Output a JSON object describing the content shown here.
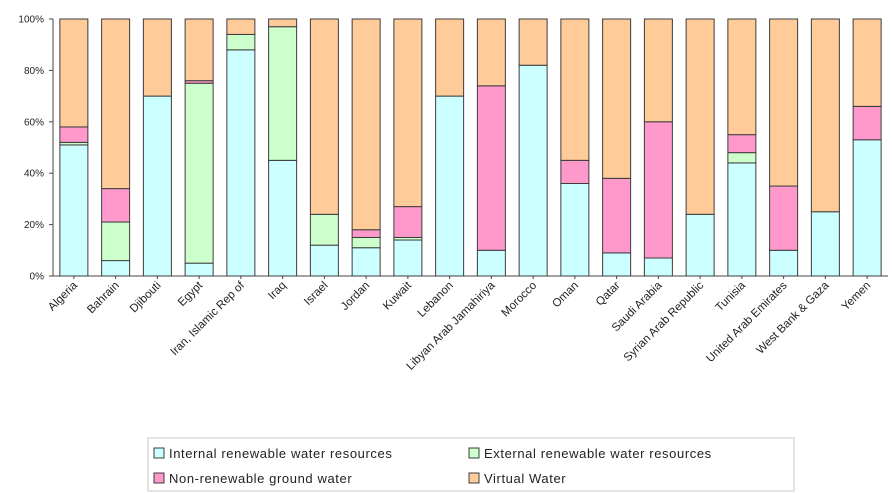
{
  "chart_data": {
    "type": "bar",
    "stacked": true,
    "percent": true,
    "ylim": [
      0,
      100
    ],
    "yticks": [
      "0%",
      "20%",
      "40%",
      "60%",
      "80%",
      "100%"
    ],
    "grid": false,
    "legend_position": "bottom",
    "categories": [
      "Algeria",
      "Bahrain",
      "Djibouti",
      "Egypt",
      "Iran, Islamic Rep of",
      "Iraq",
      "Israel",
      "Jordan",
      "Kuwait",
      "Lebanon",
      "Libyan Arab Jamahiriya",
      "Morocco",
      "Oman",
      "Qatar",
      "Saudi Arabia",
      "Syrian Arab Republic",
      "Tunisia",
      "United Arab Emirates",
      "West Bank & Gaza",
      "Yemen"
    ],
    "series": [
      {
        "name": "Internal renewable water resources",
        "color": "#ccffff",
        "values": [
          51,
          6,
          70,
          5,
          88,
          45,
          12,
          11,
          14,
          70,
          10,
          82,
          36,
          9,
          7,
          24,
          44,
          10,
          25,
          53
        ]
      },
      {
        "name": "External renewable water resources",
        "color": "#ccffcc",
        "values": [
          1,
          15,
          0,
          70,
          6,
          52,
          12,
          4,
          1,
          0,
          0,
          0,
          0,
          0,
          0,
          0,
          4,
          0,
          0,
          0
        ]
      },
      {
        "name": "Non-renewable ground water",
        "color": "#ff99cc",
        "values": [
          6,
          13,
          0,
          1,
          0,
          0,
          0,
          3,
          12,
          0,
          64,
          0,
          9,
          29,
          53,
          0,
          7,
          25,
          0,
          13
        ]
      },
      {
        "name": "Virtual Water",
        "color": "#ffcc99",
        "values": [
          42,
          66,
          30,
          24,
          6,
          3,
          76,
          82,
          73,
          30,
          26,
          18,
          55,
          62,
          40,
          76,
          45,
          65,
          75,
          34
        ]
      }
    ]
  }
}
